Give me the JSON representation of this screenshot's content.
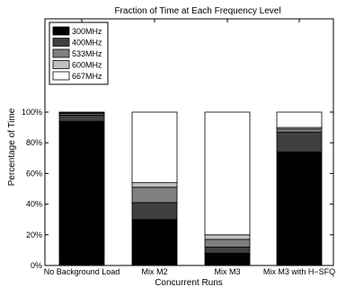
{
  "chart_data": {
    "type": "bar",
    "stacked": true,
    "title": "Fraction of Time at Each Frequency Level",
    "xlabel": "Concurrent Runs",
    "ylabel": "Percentage of Time",
    "ylim": [
      0,
      100
    ],
    "categories": [
      "No Background Load",
      "Mix M2",
      "Mix M3",
      "Mix M3 with H−SFQ"
    ],
    "y_ticks": [
      "0%",
      "20%",
      "40%",
      "60%",
      "80%",
      "100%"
    ],
    "legend_position": "top-left",
    "grid": false,
    "series": [
      {
        "name": "300MHz",
        "color": "#000000",
        "values": [
          94,
          30,
          8,
          74
        ]
      },
      {
        "name": "400MHz",
        "color": "#404040",
        "values": [
          4,
          11,
          4,
          13
        ]
      },
      {
        "name": "533MHz",
        "color": "#808080",
        "values": [
          1,
          10,
          5,
          2
        ]
      },
      {
        "name": "600MHz",
        "color": "#c0c0c0",
        "values": [
          0.5,
          3,
          3,
          1
        ]
      },
      {
        "name": "667MHz",
        "color": "#ffffff",
        "values": [
          0.5,
          46,
          80,
          10
        ]
      }
    ]
  }
}
